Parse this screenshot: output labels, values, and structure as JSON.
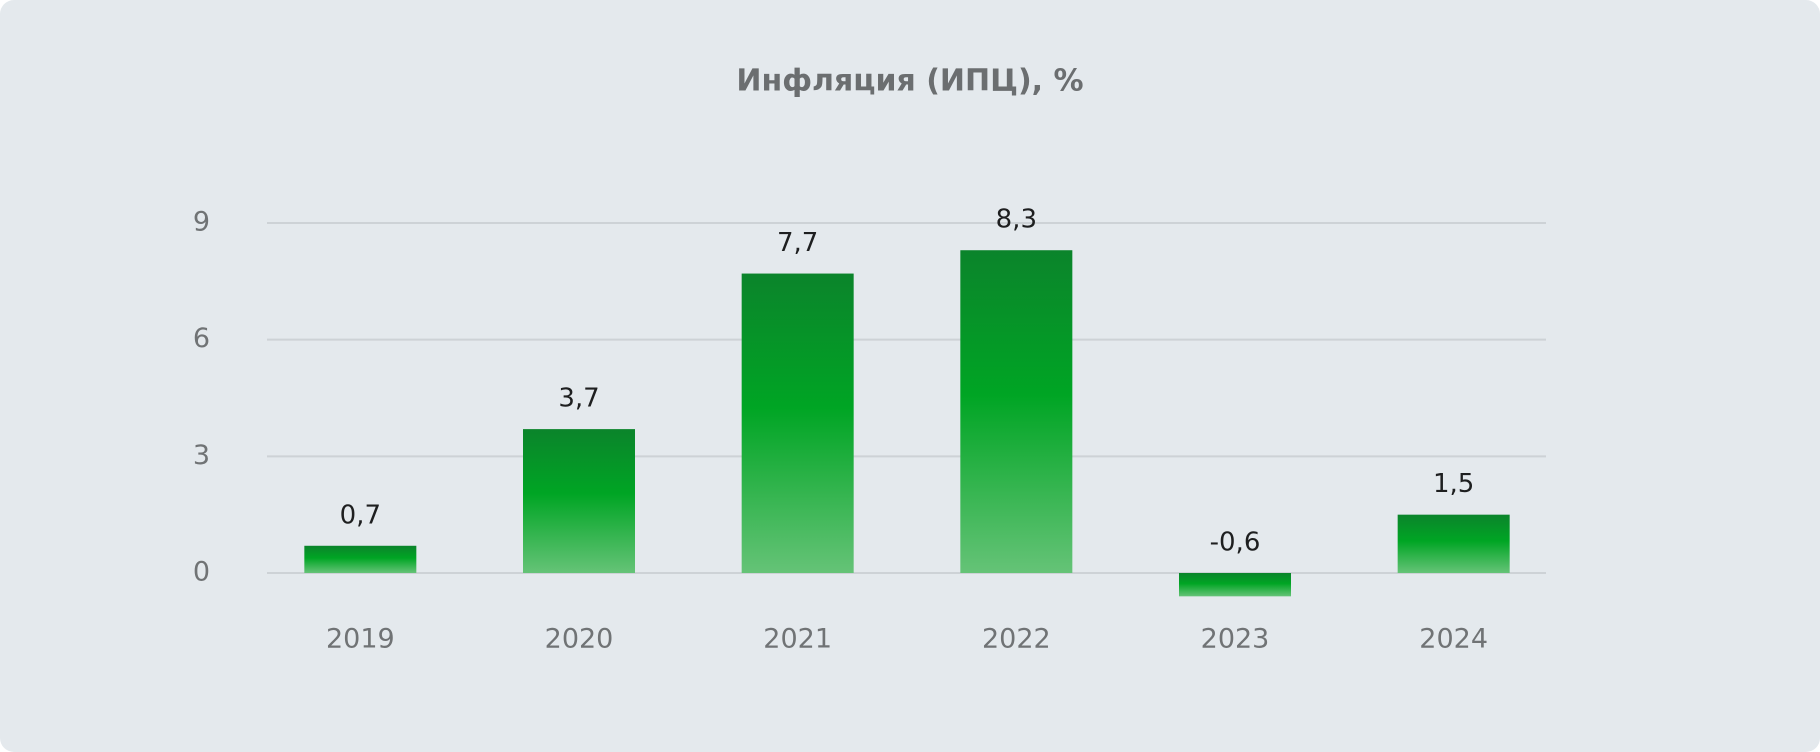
{
  "chart_data": {
    "type": "bar",
    "title": "Инфляция (ИПЦ), %",
    "categories": [
      "2019",
      "2020",
      "2021",
      "2022",
      "2023",
      "2024"
    ],
    "values": [
      0.7,
      3.7,
      7.7,
      8.3,
      -0.6,
      1.5
    ],
    "value_labels": [
      "0,7",
      "3,7",
      "7,7",
      "8,3",
      "-0,6",
      "1,5"
    ],
    "color": "#00a524",
    "ylim": [
      -1,
      9
    ],
    "yticks": [
      0,
      3,
      6,
      9
    ],
    "grid": true
  }
}
